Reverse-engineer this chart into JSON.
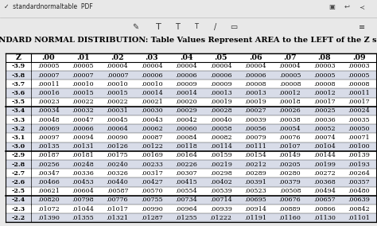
{
  "title": "STANDARD NORMAL DISTRIBUTION: Table Values Represent AREA to the LEFT of the Z score.",
  "headers": [
    "Z",
    ".00",
    ".01",
    ".02",
    ".03",
    ".04",
    ".05",
    ".06",
    ".07",
    ".08",
    ".09"
  ],
  "rows": [
    [
      "-3.9",
      ".00005",
      ".00005",
      ".00004",
      ".00004",
      ".00004",
      ".00004",
      ".00004",
      ".00004",
      ".00003",
      ".00003"
    ],
    [
      "-3.8",
      ".00007",
      ".00007",
      ".00007",
      ".00006",
      ".00006",
      ".00006",
      ".00006",
      ".00005",
      ".00005",
      ".00005"
    ],
    [
      "-3.7",
      ".00011",
      ".00010",
      ".00010",
      ".00010",
      ".00009",
      ".00009",
      ".00008",
      ".00008",
      ".00008",
      ".00008"
    ],
    [
      "-3.6",
      ".00016",
      ".00015",
      ".00015",
      ".00014",
      ".00014",
      ".00013",
      ".00013",
      ".00012",
      ".00012",
      ".00011"
    ],
    [
      "-3.5",
      ".00023",
      ".00022",
      ".00022",
      ".00021",
      ".00020",
      ".00019",
      ".00019",
      ".00018",
      ".00017",
      ".00017"
    ],
    [
      "-3.4",
      ".00034",
      ".00032",
      ".00031",
      ".00030",
      ".00029",
      ".00028",
      ".00027",
      ".00026",
      ".00025",
      ".00024"
    ],
    [
      "-3.3",
      ".00048",
      ".00047",
      ".00045",
      ".00043",
      ".00042",
      ".00040",
      ".00039",
      ".00038",
      ".00036",
      ".00035"
    ],
    [
      "-3.2",
      ".00069",
      ".00066",
      ".00064",
      ".00062",
      ".00060",
      ".00058",
      ".00056",
      ".00054",
      ".00052",
      ".00050"
    ],
    [
      "-3.1",
      ".00097",
      ".00094",
      ".00090",
      ".00087",
      ".00084",
      ".00082",
      ".00079",
      ".00076",
      ".00074",
      ".00071"
    ],
    [
      "-3.0",
      ".00135",
      ".00131",
      ".00126",
      ".00122",
      ".00118",
      ".00114",
      ".00111",
      ".00107",
      ".00104",
      ".00100"
    ],
    [
      "-2.9",
      ".00187",
      ".00181",
      ".00175",
      ".00169",
      ".00164",
      ".00159",
      ".00154",
      ".00149",
      ".00144",
      ".00139"
    ],
    [
      "-2.8",
      ".00256",
      ".00248",
      ".00240",
      ".00233",
      ".00226",
      ".00219",
      ".00212",
      ".00205",
      ".00199",
      ".00193"
    ],
    [
      "-2.7",
      ".00347",
      ".00336",
      ".00326",
      ".00317",
      ".00307",
      ".00298",
      ".00289",
      ".00280",
      ".00272",
      ".00264"
    ],
    [
      "-2.6",
      ".00466",
      ".00453",
      ".00440",
      ".00427",
      ".00415",
      ".00402",
      ".00391",
      ".00379",
      ".00368",
      ".00357"
    ],
    [
      "-2.5",
      ".00621",
      ".00604",
      ".00587",
      ".00570",
      ".00554",
      ".00539",
      ".00523",
      ".00508",
      ".00494",
      ".00480"
    ],
    [
      "-2.4",
      ".00820",
      ".00798",
      ".00776",
      ".00755",
      ".00734",
      ".00714",
      ".00695",
      ".00676",
      ".00657",
      ".00639"
    ],
    [
      "-2.3",
      ".01072",
      ".01044",
      ".01017",
      ".00990",
      ".00964",
      ".00939",
      ".00914",
      ".00889",
      ".00866",
      ".00842"
    ],
    [
      "-2.2",
      ".01390",
      ".01355",
      ".01321",
      ".01287",
      ".01255",
      ".01222",
      ".01191",
      ".01160",
      ".01130",
      ".01101"
    ]
  ],
  "thick_border_after": [
    4,
    9,
    14
  ],
  "title_fontsize": 7.0,
  "cell_fontsize": 5.8,
  "header_fontsize": 6.8,
  "toolbar_bg": "#e0e0e0",
  "table_bg": "#ffffff",
  "alt_row_color": "#d8dce8"
}
